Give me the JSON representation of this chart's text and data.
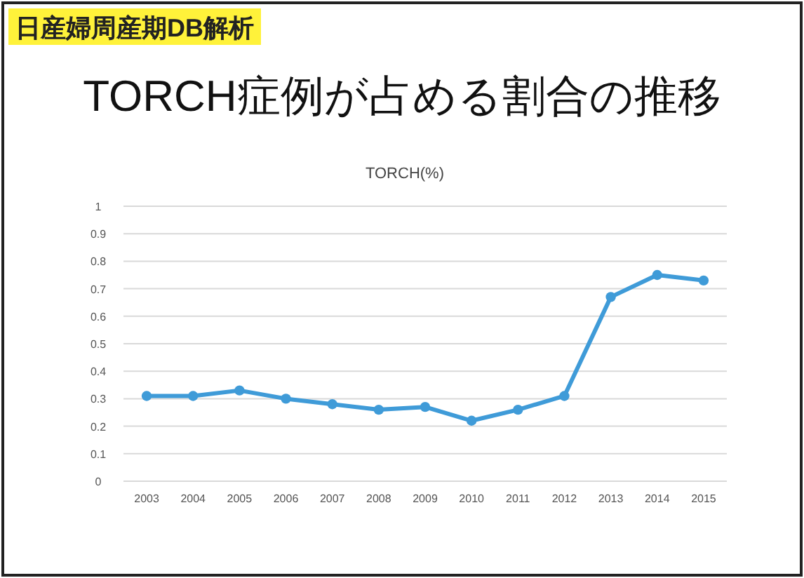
{
  "chart_data": {
    "type": "line",
    "title": "TORCH症例が占める割合の推移",
    "subtitle": "TORCH(%)",
    "annotations": [
      "日産婦周産期DB解析"
    ],
    "categories": [
      "2003",
      "2004",
      "2005",
      "2006",
      "2007",
      "2008",
      "2009",
      "2010",
      "2011",
      "2012",
      "2013",
      "2014",
      "2015"
    ],
    "series": [
      {
        "color": "#3f9bd8",
        "values": [
          0.31,
          0.31,
          0.33,
          0.3,
          0.28,
          0.26,
          0.27,
          0.22,
          0.26,
          0.31,
          0.67,
          0.75,
          0.73
        ]
      }
    ],
    "ylim": [
      0,
      1
    ],
    "yticks": [
      0,
      0.1,
      0.2,
      0.3,
      0.4,
      0.5,
      0.6,
      0.7,
      0.8,
      0.9,
      1
    ],
    "grid": "y",
    "marker": "circle",
    "line_style": "solid"
  }
}
